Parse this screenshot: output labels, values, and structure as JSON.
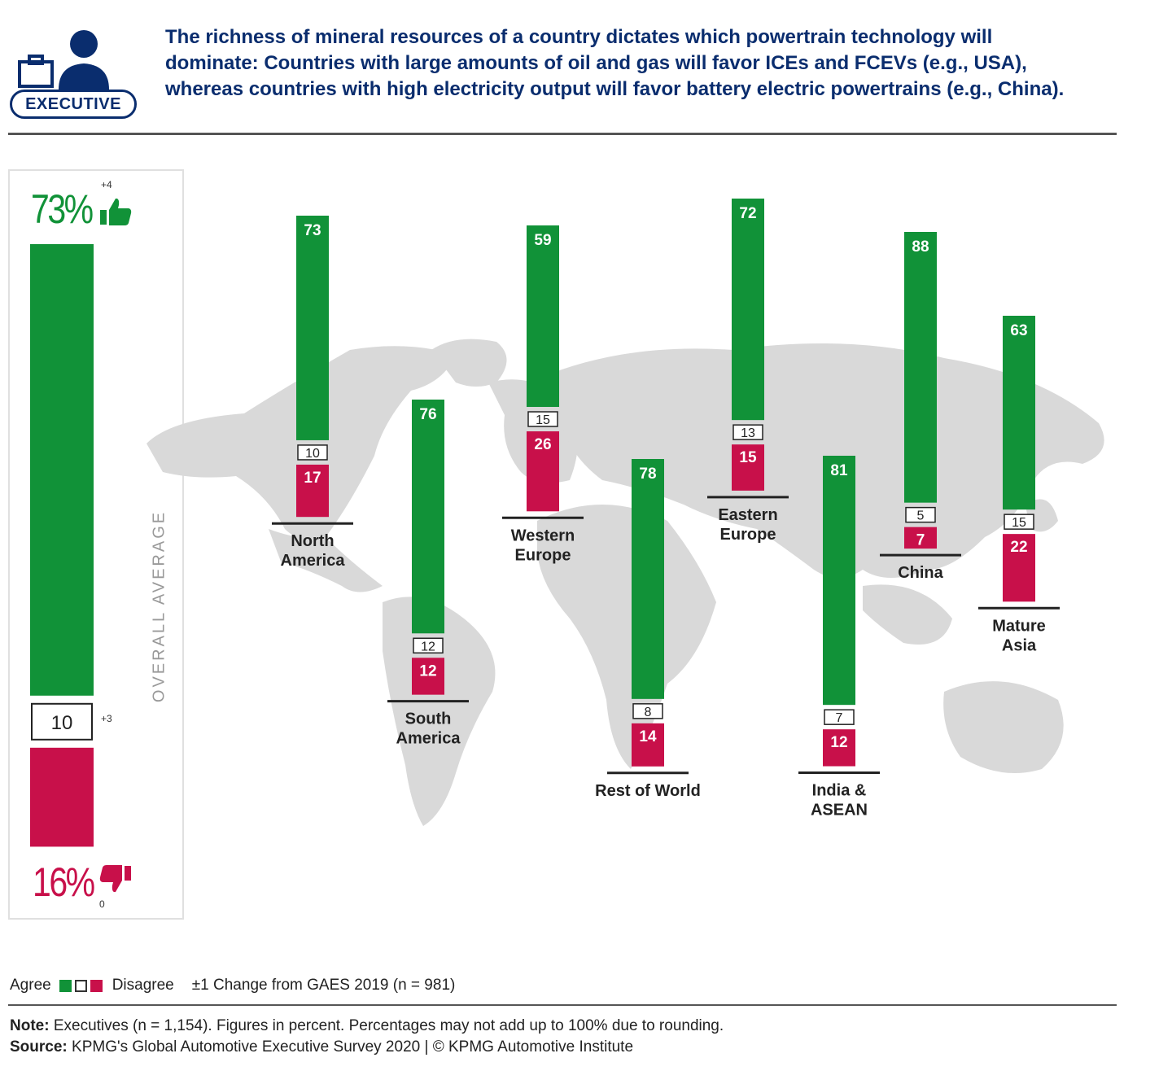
{
  "header": {
    "badge": "EXECUTIVE",
    "headline": "The richness of mineral resources of a country dictates which powertrain technology will dominate: Countries with large amounts of oil and gas will favor ICEs and FCEVs (e.g., USA), whereas countries with high electricity output will favor battery electric powertrains (e.g., China)."
  },
  "overall": {
    "label": "OVERALL AVERAGE",
    "agree_pct": "73%",
    "agree_change": "+4",
    "neutral": "10",
    "neutral_change": "+3",
    "disagree_pct": "16%",
    "disagree_change": "0"
  },
  "colors": {
    "agree": "#119238",
    "disagree": "#c8104a",
    "neutral": "#ffffff",
    "navy": "#0a2d6e",
    "map": "#d9d9d9"
  },
  "legend": {
    "agree": "Agree",
    "disagree": "Disagree",
    "change": "±1 Change from GAES 2019 (n = 981)"
  },
  "footer": {
    "note_label": "Note:",
    "note": " Executives (n = 1,154). Figures in percent. Percentages may not add up to 100% due to rounding.",
    "source_label": "Source:",
    "source": " KPMG's Global Automotive Executive Survey 2020 | © KPMG Automotive Institute"
  },
  "chart_data": {
    "type": "bar",
    "stacked": true,
    "categories": [
      "North America",
      "South America",
      "Western Europe",
      "Rest of World",
      "Eastern Europe",
      "India & ASEAN",
      "China",
      "Mature Asia"
    ],
    "series": [
      {
        "name": "Agree",
        "values": [
          73,
          76,
          59,
          78,
          72,
          81,
          88,
          63
        ]
      },
      {
        "name": "",
        "values": [
          10,
          12,
          15,
          8,
          13,
          7,
          5,
          15
        ]
      },
      {
        "name": "Disagree",
        "values": [
          17,
          12,
          26,
          14,
          15,
          12,
          7,
          22
        ]
      }
    ],
    "overall_average": {
      "agree": 73,
      "neutral": 10,
      "disagree": 16
    },
    "legend": "bottom-left"
  }
}
